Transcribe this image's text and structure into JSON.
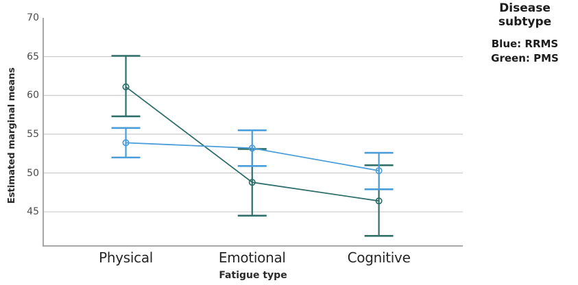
{
  "chart_data": {
    "type": "line",
    "title": "",
    "categories": [
      "Physical",
      "Emotional",
      "Cognitive"
    ],
    "xlabel": "Fatigue type",
    "ylabel": "Estimated marginal means",
    "y_ticks": [
      70,
      65,
      60,
      55,
      50,
      45
    ],
    "grid_ticks": [
      65,
      60,
      55,
      50,
      45
    ],
    "ylim": [
      40.6,
      70
    ],
    "grid": "horizontal",
    "legend_position": "top-right",
    "marker": "open-circle",
    "error_bars": true,
    "series": [
      {
        "name": "RRMS",
        "color_name": "Blue",
        "color": "#4a9dd8",
        "values": [
          53.9,
          53.2,
          50.3
        ],
        "ci_low": [
          52.0,
          50.9,
          47.9
        ],
        "ci_high": [
          55.8,
          55.5,
          52.6
        ]
      },
      {
        "name": "PMS",
        "color_name": "Green",
        "color": "#2e6f6a",
        "values": [
          61.1,
          48.8,
          46.4
        ],
        "ci_low": [
          57.3,
          44.5,
          41.9
        ],
        "ci_high": [
          65.1,
          53.1,
          51.0
        ]
      }
    ]
  },
  "legend": {
    "title": "Disease subtype",
    "entries": [
      {
        "label": "Blue: RRMS"
      },
      {
        "label": "Green: PMS"
      }
    ]
  },
  "colors": {
    "grid": "#cbcbcb",
    "axis": "#9c9c9c",
    "background": "#ffffff"
  }
}
